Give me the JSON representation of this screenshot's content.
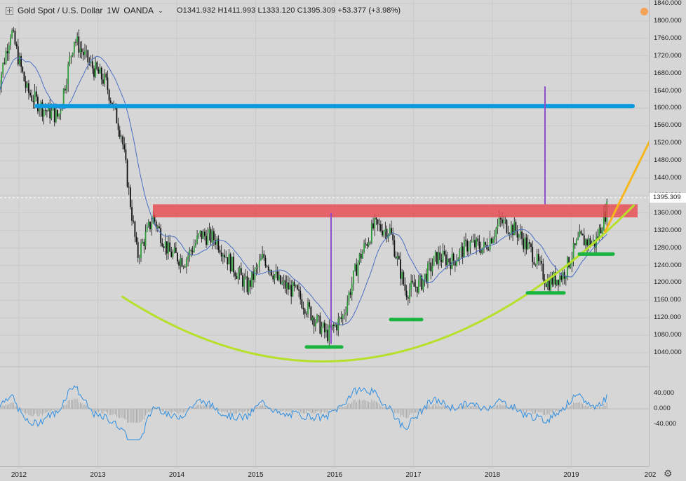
{
  "header": {
    "symbol": "Gold Spot / U.S. Dollar",
    "interval": "1W",
    "broker": "OANDA",
    "ohlc": "O1341.932  H1411.993  L1333.120  C1395.309  +53.377 (+3.98%)"
  },
  "price_axis": {
    "ticks": [
      "1840.000",
      "1800.000",
      "1760.000",
      "1720.000",
      "1680.000",
      "1640.000",
      "1600.000",
      "1560.000",
      "1520.000",
      "1480.000",
      "1440.000",
      "1400.000",
      "1360.000",
      "1320.000",
      "1280.000",
      "1240.000",
      "1200.000",
      "1160.000",
      "1120.000",
      "1080.000",
      "1040.000"
    ],
    "current_price": "1395.309"
  },
  "osc_axis": {
    "ticks": [
      "40.000",
      "0.000",
      "-40.000"
    ]
  },
  "time_axis": {
    "ticks": [
      "2012",
      "2013",
      "2014",
      "2015",
      "2016",
      "2017",
      "2018",
      "2019",
      "202"
    ]
  },
  "colors": {
    "background": "#d6d6d6",
    "candle_up": "#2e9c3a",
    "candle_down": "#111111",
    "ma": "#4a6fc2",
    "resistance_zone": "#e8474f",
    "blue_line": "#0a9be0",
    "cup_curve": "#b6e02a",
    "target_line": "#8f4fc8",
    "green_lows": "#19b33f",
    "orange_line": "#f5b71a",
    "oscillator": "#2f8ee0"
  },
  "chart_data": {
    "type": "line",
    "title": "Gold Spot / U.S. Dollar",
    "xlabel": "",
    "ylabel": "",
    "ylim": [
      1020,
      1840
    ],
    "x": [
      2011.7,
      2011.9,
      2012.1,
      2012.3,
      2012.5,
      2012.7,
      2012.9,
      2013.1,
      2013.3,
      2013.5,
      2013.7,
      2013.9,
      2014.1,
      2014.3,
      2014.5,
      2014.7,
      2014.9,
      2015.1,
      2015.3,
      2015.5,
      2015.7,
      2015.9,
      2016.1,
      2016.3,
      2016.5,
      2016.7,
      2016.9,
      2017.1,
      2017.3,
      2017.5,
      2017.7,
      2017.9,
      2018.1,
      2018.3,
      2018.5,
      2018.7,
      2018.9,
      2019.1,
      2019.3,
      2019.5
    ],
    "series": [
      {
        "values": [
          1620,
          1780,
          1640,
          1600,
          1580,
          1760,
          1700,
          1660,
          1540,
          1260,
          1350,
          1270,
          1250,
          1310,
          1300,
          1240,
          1190,
          1260,
          1200,
          1180,
          1130,
          1080,
          1120,
          1250,
          1330,
          1320,
          1180,
          1200,
          1260,
          1250,
          1290,
          1280,
          1340,
          1320,
          1270,
          1200,
          1220,
          1300,
          1290,
          1395
        ]
      }
    ],
    "annotations": {
      "resistance_zone": [
        1350,
        1380
      ],
      "horizontal_line": 1605,
      "cup_bottom": 1020
    }
  }
}
